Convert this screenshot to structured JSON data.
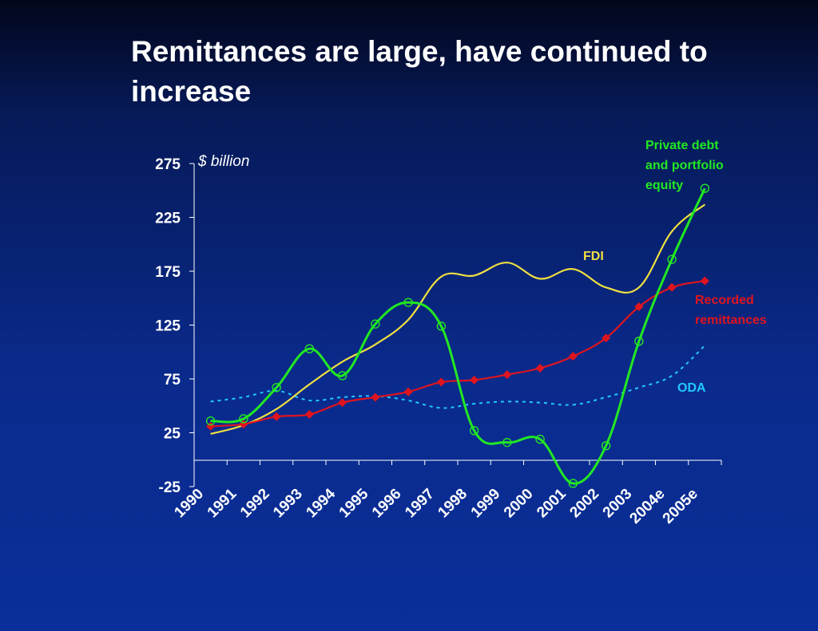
{
  "title": "Remittances are large, have continued to increase",
  "chart_data": {
    "type": "line",
    "unit_label": "$ billion",
    "categories": [
      "1990",
      "1991",
      "1992",
      "1993",
      "1994",
      "1995",
      "1996",
      "1997",
      "1998",
      "1999",
      "2000",
      "2001",
      "2002",
      "2003",
      "2004e",
      "2005e"
    ],
    "ylim": [
      -25,
      275
    ],
    "yticks": [
      275,
      225,
      175,
      125,
      75,
      25,
      -25
    ],
    "grid": false,
    "series": [
      {
        "name": "Private debt and portfolio equity",
        "label_lines": [
          "Private debt",
          "and portfolio",
          "equity"
        ],
        "color": "#22e822",
        "style": "solid",
        "marker": "circle",
        "values": [
          36,
          38,
          67,
          103,
          78,
          126,
          146,
          124,
          27,
          16,
          19,
          -22,
          13,
          110,
          186,
          252
        ]
      },
      {
        "name": "FDI",
        "label_lines": [
          "FDI"
        ],
        "color": "#f0e040",
        "style": "solid",
        "marker": "none",
        "values": [
          24,
          32,
          47,
          70,
          91,
          107,
          130,
          170,
          171,
          183,
          168,
          177,
          160,
          160,
          212,
          237
        ]
      },
      {
        "name": "Recorded remittances",
        "label_lines": [
          "Recorded",
          "remittances"
        ],
        "color": "#e0141e",
        "style": "solid",
        "marker": "diamond",
        "values": [
          31,
          33,
          40,
          42,
          53,
          58,
          63,
          72,
          74,
          79,
          85,
          96,
          113,
          142,
          160,
          166
        ]
      },
      {
        "name": "ODA",
        "label_lines": [
          "ODA"
        ],
        "color": "#22c8ff",
        "style": "dashed",
        "marker": "none",
        "values": [
          54,
          58,
          64,
          55,
          58,
          59,
          55,
          48,
          52,
          54,
          53,
          51,
          58,
          67,
          78,
          106
        ]
      }
    ]
  }
}
